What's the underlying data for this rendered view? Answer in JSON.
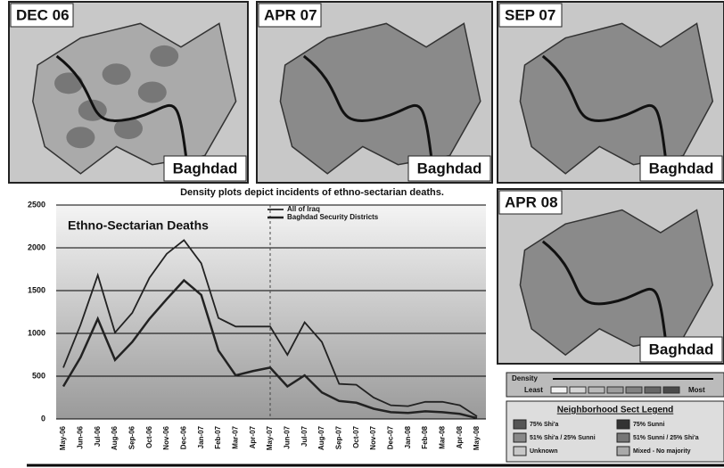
{
  "maps": [
    {
      "label": "DEC 06",
      "city": "Baghdad"
    },
    {
      "label": "APR 07",
      "city": "Baghdad"
    },
    {
      "label": "SEP 07",
      "city": "Baghdad"
    },
    {
      "label": "APR 08",
      "city": "Baghdad"
    }
  ],
  "caption": "Density plots depict incidents of ethno-sectarian deaths.",
  "density_legend": {
    "title": "Density",
    "least": "Least",
    "most": "Most"
  },
  "sect_legend": {
    "title": "Neighborhood Sect Legend",
    "items": [
      "75% Shi'a",
      "75% Sunni",
      "51% Shi'a / 25% Sunni",
      "51% Sunni / 25% Shi'a",
      "Unknown",
      "Mixed - No majority"
    ]
  },
  "chart_data": {
    "type": "line",
    "title": "Ethno-Sectarian Deaths",
    "categories": [
      "May-06",
      "Jun-06",
      "Jul-06",
      "Aug-06",
      "Sep-06",
      "Oct-06",
      "Nov-06",
      "Dec-06",
      "Jan-07",
      "Feb-07",
      "Mar-07",
      "Apr-07",
      "May-07",
      "Jun-07",
      "Jul-07",
      "Aug-07",
      "Sep-07",
      "Oct-07",
      "Nov-07",
      "Dec-07",
      "Jan-08",
      "Feb-08",
      "Mar-08",
      "Apr-08",
      "May-08"
    ],
    "series": [
      {
        "name": "All of Iraq",
        "color": "#222222",
        "values": [
          600,
          1100,
          1680,
          1010,
          1240,
          1650,
          1930,
          2090,
          1820,
          1180,
          1080,
          1080,
          1080,
          750,
          1130,
          900,
          410,
          400,
          250,
          160,
          150,
          200,
          200,
          160,
          30
        ]
      },
      {
        "name": "Baghdad Security Districts",
        "color": "#222222",
        "values": [
          380,
          720,
          1170,
          690,
          900,
          1170,
          1400,
          1620,
          1450,
          800,
          510,
          560,
          600,
          380,
          510,
          310,
          210,
          190,
          120,
          80,
          70,
          90,
          80,
          60,
          10
        ]
      }
    ],
    "ylim": [
      0,
      2500
    ],
    "yticks": [
      0,
      500,
      1000,
      1500,
      2000,
      2500
    ],
    "grid": true
  }
}
